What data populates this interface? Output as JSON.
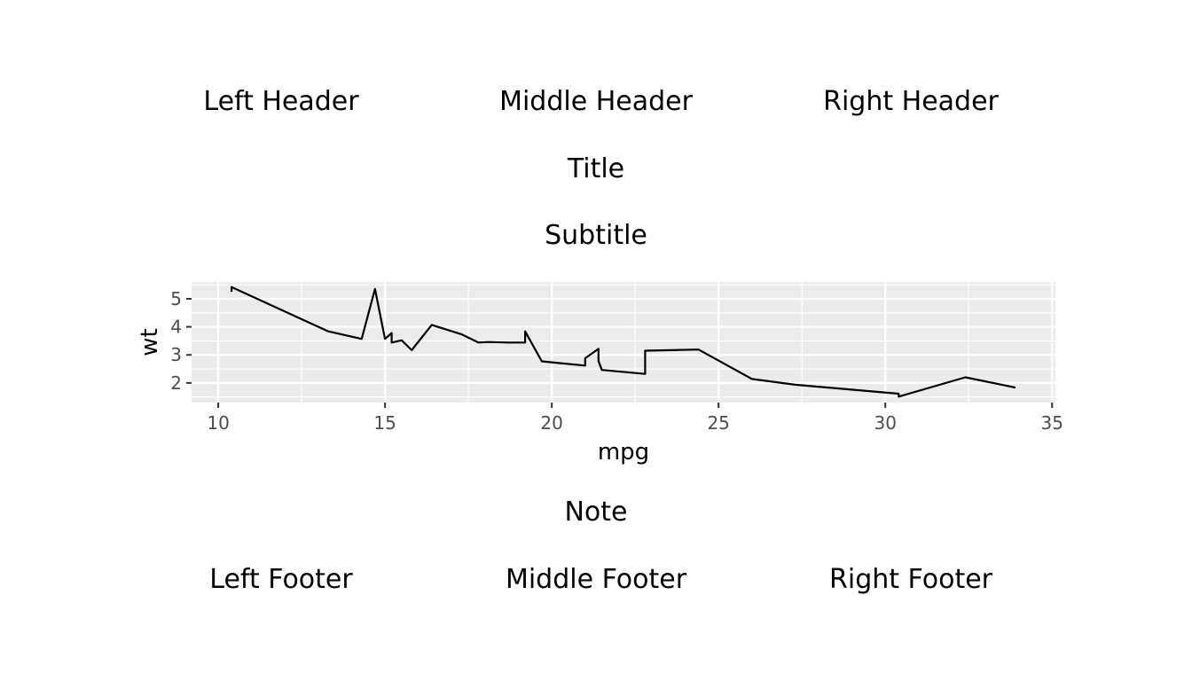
{
  "headers": {
    "left": "Left Header",
    "middle": "Middle Header",
    "right": "Right Header"
  },
  "footers": {
    "left": "Left Footer",
    "middle": "Middle Footer",
    "right": "Right Footer"
  },
  "note": "Note",
  "chart_data": {
    "type": "line",
    "title": "Title",
    "subtitle": "Subtitle",
    "xlabel": "mpg",
    "ylabel": "wt",
    "xlim": [
      9.2,
      35.1
    ],
    "ylim": [
      1.3,
      5.6
    ],
    "xticks": [
      10,
      15,
      20,
      25,
      30,
      35
    ],
    "yticks": [
      2,
      3,
      4,
      5
    ],
    "grid": true,
    "background": "#ebebeb",
    "line_color": "#000000",
    "x": [
      10.4,
      10.4,
      13.3,
      14.3,
      14.7,
      15.0,
      15.2,
      15.2,
      15.5,
      15.8,
      16.4,
      17.3,
      17.8,
      18.1,
      18.7,
      19.2,
      19.2,
      19.7,
      21.0,
      21.0,
      21.4,
      21.4,
      21.5,
      22.8,
      22.8,
      24.4,
      26.0,
      27.3,
      30.4,
      30.4,
      32.4,
      33.9
    ],
    "y": [
      5.25,
      5.42,
      3.84,
      3.57,
      5.35,
      3.57,
      3.78,
      3.44,
      3.52,
      3.17,
      4.07,
      3.73,
      3.44,
      3.46,
      3.44,
      3.44,
      3.84,
      2.77,
      2.62,
      2.88,
      3.215,
      2.78,
      2.465,
      2.32,
      3.15,
      3.19,
      2.14,
      1.935,
      1.615,
      1.513,
      2.2,
      1.835
    ]
  }
}
